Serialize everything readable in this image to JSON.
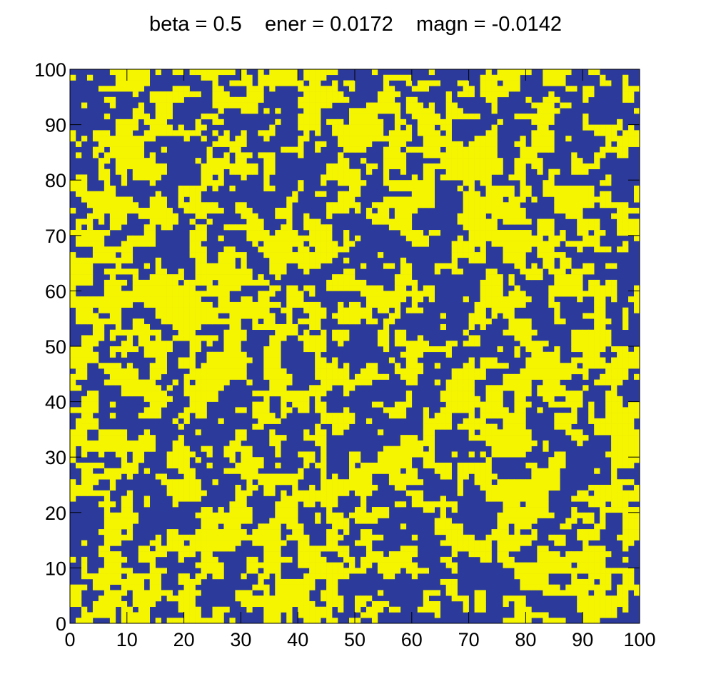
{
  "chart_data": {
    "type": "heatmap",
    "title": "beta = 0.5    ener = 0.0172    magn = -0.0142",
    "xlabel": "",
    "ylabel": "",
    "grid_size": [
      100,
      100
    ],
    "xlim": [
      0,
      100
    ],
    "ylim": [
      0,
      100
    ],
    "x_ticks": [
      0,
      10,
      20,
      30,
      40,
      50,
      60,
      70,
      80,
      90,
      100
    ],
    "y_ticks": [
      0,
      10,
      20,
      30,
      40,
      50,
      60,
      70,
      80,
      90,
      100
    ],
    "x_tick_labels": [
      "0",
      "10",
      "20",
      "30",
      "40",
      "50",
      "60",
      "70",
      "80",
      "90",
      "100"
    ],
    "y_tick_labels": [
      "0",
      "10",
      "20",
      "30",
      "40",
      "50",
      "60",
      "70",
      "80",
      "90",
      "100"
    ],
    "states": [
      -1,
      1
    ],
    "state_colors": {
      "-1": "#2b3a9b",
      "1": "#f5f500"
    },
    "magnetization": -0.0142,
    "grid": false,
    "legend": "none"
  },
  "colors": {
    "background": "#ffffff",
    "axis": "#000000"
  }
}
